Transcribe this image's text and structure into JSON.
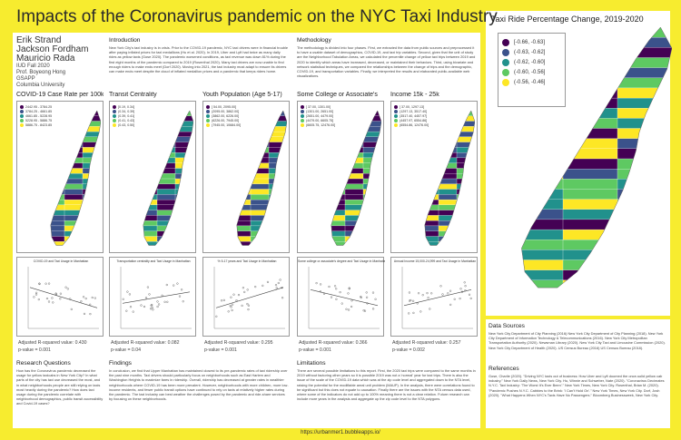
{
  "title": "Impacts of the Coronavirus pandemic on the NYC Taxi Industry",
  "authors": {
    "names": [
      "Erik Strand",
      "Jackson Fordham",
      "Mauricio Rada"
    ],
    "details": [
      "IUD Fall 2020",
      "Prof. Boyeong Hong",
      "GSAPP",
      "Columbia University"
    ]
  },
  "intro": {
    "title": "Introduction",
    "text": "New York City's taxi industry is in crisis. Prior to the COVID-19 pandemic, NYC taxi drivers were in financial trouble after paying inflated prices for taxi medallions (Hu et al. 2020). In 2019, Uber and Lyft had twice as many daily rides as yellow taxis (Gose 2020). The pandemic worsened conditions, as taxi revenue was down 81% during the first eight months of the pandemic compared to 2019 (Rosenthal 2020). Many taxi drivers are now unable to find enough riders to make ends meet (Dorf 2020). Moving into 2021, the taxi industry must adapt to ensure its drivers can make ends meet despite the cloud of inflated medallion prices and a pandemic that keeps riders home."
  },
  "methodology": {
    "title": "Methodology",
    "text": "The methodology is divided into four phases. First, we extracted the data from public sources and preprocessed it to have a usable dataset of demographics, COVID-19, and taxi trip variables. Second, given that the unit of study are the Neighborhood Tabulation Areas, we calculated the percentile change of yellow taxi trips between 2019 and 2020 to identify which areas have increased, decreased, or maintained their behaviors. Third, using bivariate and network statistical techniques, we compared the relationships between the change of trips and the demographic, COVID-19, and transportation variables. Finally, we interpreted the results and elaborated public-available web visualizations."
  },
  "panels": [
    {
      "title": "COVID-19 Case Rate per 100k",
      "legend": [
        "2442.95 - 3784.25",
        "3784.25 - 4661.85",
        "4661.85 - 5228.95",
        "5228.95 - 5886.75",
        "5886.75 - 8423.85"
      ],
      "scatter_title": "COVID-19 and Taxi Usage in Manhattan",
      "stat1": "Adjusted R-squared value: 0.430",
      "stat2": "p-value = 0.001"
    },
    {
      "title": "Transit Centrality",
      "legend": [
        "[0.19, 0.34]",
        "(0.34, 0.39]",
        "(0.39, 0.41]",
        "(0.41, 0.43]",
        "(0.43, 0.50]"
      ],
      "scatter_title": "Transportation centrality and Taxi Usage in Manhattan",
      "stat1": "Adjusted R-squared value: 0.082",
      "stat2": "p-value = 0.04"
    },
    {
      "title": "Youth Population (Age 5-17)",
      "legend": [
        "[ 54.00, 2095.00]",
        "(2095.00, 3862.00]",
        "(3862.00, 6226.00]",
        "(6226.00, 7945.00]",
        "(7945.00, 10684.00]"
      ],
      "scatter_title": "% 5-17 years and Taxi Usage in Manhattan",
      "stat1": "Adjusted R-squared value: 0.295",
      "stat2": "p-value = 0.001"
    },
    {
      "title": "Some College or Associate's",
      "legend": [
        "[ 37.00, 1301.00]",
        "(1301.00, 2651.00]",
        "(2651.00, 4479.00]",
        "(4479.00, 6605.75]",
        "(6605.75, 12476.00]"
      ],
      "scatter_title": "Some college or associate's degree and Taxi Usage in Manhattan",
      "stat1": "Adjusted R-squared value: 0.366",
      "stat2": "p-value = 0.001"
    },
    {
      "title": "Income 15k - 25k",
      "legend": [
        "[ 37.00, 1297.13]",
        "(1297.13, 3517.40]",
        "(3517.40, 4457.97]",
        "(4457.97, 6554.86]",
        "(6554.86, 12476.00]"
      ],
      "scatter_title": "Annual Income 15,000-24,999 and Taxi Usage in Manhattan",
      "stat1": "Adjusted R-squared value: 0.257",
      "stat2": "p-value = 0.002"
    }
  ],
  "research": {
    "title": "Research Questions",
    "text": "How has the Coronavirus pandemic decreased the usage for yellow taxicabs in New York City? In what parts of the city has taxi use decreased the most, and in what neighborhoods people are still relying on taxis most heavily during the pandemic? How does taxi usage during the pandemic correlate with neighborhood demographics, public transit accessibility and Covid-19 cases?"
  },
  "findings": {
    "title": "Findings",
    "text": "In conclusion, we find that Upper Manhattan has maintained closest to its pre-pandemic rates of taxi ridership over the past nine months. Taxi drivers should particularly focus on neighborhoods such as East Harlem and Washington Heights to maximize fares in ridership. Overall, ridership has decreased at greater rates in wealthier neighborhoods where COVID-19 has been more prevalent. However, neighborhoods with more children, more low-income residents, and fewer public transit options have continued to rely on taxis at relatively higher rates during the pandemic. The taxi industry can best weather the challenges posed by the pandemic and ride-share services by focusing on these neighborhoods."
  },
  "limitations": {
    "title": "Limitations",
    "text": "There are several possible limitations to this report. First, the 2020 taxi trips were compared to the same months in 2019 without factoring other years so it is possible 2019 was not a 'normal' year for taxi trips. There is also the issue of the scale of the COVID-19 data which was at the zip code level and aggregated down to the NTA level, raising the potential for the modifiable areal unit problem (MAUP). In the analysis, there were correlations found to be significant but this does not equate to causation. Finally there are the issues with the NTA census data used, where some of the indicators do not add up to 100% meaning there is not a clear relation. Future research can include more years in the analysis and aggregate up the zip code level to the NTA polygons."
  },
  "big_map": {
    "title": "Taxi Ride Percentage Change, 2019-2020",
    "legend": [
      "[-0.66, -0.63]",
      "(-0.63, -0.62]",
      "(-0.62, -0.60]",
      "(-0.60, -0.56]",
      "(-0.56, -0.46]"
    ]
  },
  "data_sources": {
    "title": "Data Sources",
    "text": "New York City Department of City Planning (2016) New York City Department of City Planning (2018). New York City Department of Information Technology & Telecommunications (2016). New York City Metropolitan Transportation Authority (2020). Newsman Library (2020). New York City Taxi and Limousine Commission (2020). New York City Department of Health (2020). US Census Bureau (2016) US Census Bureau (2018)."
  },
  "references": {
    "title": "References",
    "text": "Gose, Charlie (2020). \"Driving NYC taxis out of business: How Uber and Lyft doomed the once-solid yellow cab industry.\" New York Daily News, New York City. Hu, Winnie and Schweber, Nate (2020). \"Coronavirus Decimates N.Y.C. Taxi Industry: 'The Worst It's Ever Been'.\" New York Times, New York City. Rosenthal, Brian M. (2020). \"Pandemic Pushes N.Y.C. Cabbies to the Brink: 'I Can't Hold On'.\" New York Times, New York City. Dorf, Josh (2020). \"What Happens When NYC's Taxis Have No Passengers.\" Bloomberg Businessweek, New York City."
  },
  "footer": {
    "url": "https://urbanmer1.bubbleapps.io/"
  },
  "palette": [
    "#440154",
    "#3b528b",
    "#21918c",
    "#5ec962",
    "#fde725"
  ]
}
